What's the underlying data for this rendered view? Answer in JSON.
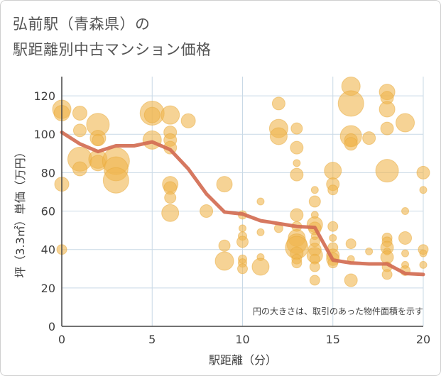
{
  "header": {
    "title_line1": "弘前駅（青森県）の",
    "title_line2": "駅距離別中古マンション価格"
  },
  "colors": {
    "bubble": "#f0b64f",
    "bubble_stroke": "#e8a93a",
    "line": "#d36c52",
    "grid": "#c9d9e6",
    "axis": "#444444"
  },
  "chart_data": {
    "type": "scatter",
    "title": "弘前駅（青森県）の駅距離別中古マンション価格",
    "xlabel": "駅距離（分）",
    "ylabel": "坪（3.3㎡）単価（万円）",
    "xlim": [
      0,
      20
    ],
    "ylim": [
      0,
      130
    ],
    "x_ticks": [
      "0",
      "5",
      "10",
      "15",
      "20"
    ],
    "y_ticks": [
      "0",
      "20",
      "40",
      "60",
      "80",
      "100",
      "120"
    ],
    "grid": true,
    "note": "円の大きさは、取引のあった物件面積を示す",
    "bubbles": [
      {
        "x": 0,
        "y": 113,
        "r": 13
      },
      {
        "x": 0,
        "y": 111,
        "r": 11
      },
      {
        "x": 0,
        "y": 74,
        "r": 10
      },
      {
        "x": 0,
        "y": 40,
        "r": 7
      },
      {
        "x": 1,
        "y": 111,
        "r": 10
      },
      {
        "x": 1,
        "y": 102,
        "r": 9
      },
      {
        "x": 1,
        "y": 87,
        "r": 17
      },
      {
        "x": 1,
        "y": 82,
        "r": 10
      },
      {
        "x": 2,
        "y": 105,
        "r": 16
      },
      {
        "x": 2,
        "y": 98,
        "r": 11
      },
      {
        "x": 2,
        "y": 97,
        "r": 8
      },
      {
        "x": 2,
        "y": 87,
        "r": 13
      },
      {
        "x": 2,
        "y": 85,
        "r": 11
      },
      {
        "x": 3,
        "y": 86,
        "r": 19
      },
      {
        "x": 3,
        "y": 82,
        "r": 17
      },
      {
        "x": 3,
        "y": 76,
        "r": 18
      },
      {
        "x": 5,
        "y": 111,
        "r": 17
      },
      {
        "x": 5,
        "y": 110,
        "r": 11
      },
      {
        "x": 5,
        "y": 97,
        "r": 13
      },
      {
        "x": 6,
        "y": 110,
        "r": 13
      },
      {
        "x": 6,
        "y": 101,
        "r": 9
      },
      {
        "x": 6,
        "y": 97,
        "r": 9
      },
      {
        "x": 6,
        "y": 93,
        "r": 9
      },
      {
        "x": 6,
        "y": 74,
        "r": 11
      },
      {
        "x": 6,
        "y": 72,
        "r": 9
      },
      {
        "x": 6,
        "y": 67,
        "r": 8
      },
      {
        "x": 6,
        "y": 59,
        "r": 12
      },
      {
        "x": 7,
        "y": 107,
        "r": 10
      },
      {
        "x": 8,
        "y": 60,
        "r": 9
      },
      {
        "x": 9,
        "y": 74,
        "r": 11
      },
      {
        "x": 9,
        "y": 42,
        "r": 8
      },
      {
        "x": 9,
        "y": 34,
        "r": 13
      },
      {
        "x": 10,
        "y": 58,
        "r": 6
      },
      {
        "x": 10,
        "y": 51,
        "r": 5
      },
      {
        "x": 10,
        "y": 47,
        "r": 6
      },
      {
        "x": 10,
        "y": 44,
        "r": 8
      },
      {
        "x": 10,
        "y": 35,
        "r": 6
      },
      {
        "x": 10,
        "y": 33,
        "r": 6
      },
      {
        "x": 10,
        "y": 30,
        "r": 7
      },
      {
        "x": 11,
        "y": 65,
        "r": 5
      },
      {
        "x": 11,
        "y": 49,
        "r": 5
      },
      {
        "x": 11,
        "y": 36,
        "r": 5
      },
      {
        "x": 11,
        "y": 31,
        "r": 12
      },
      {
        "x": 12,
        "y": 116,
        "r": 9
      },
      {
        "x": 12,
        "y": 103,
        "r": 13
      },
      {
        "x": 12,
        "y": 99,
        "r": 12
      },
      {
        "x": 12,
        "y": 51,
        "r": 6
      },
      {
        "x": 13,
        "y": 103,
        "r": 8
      },
      {
        "x": 13,
        "y": 93,
        "r": 9
      },
      {
        "x": 13,
        "y": 85,
        "r": 5
      },
      {
        "x": 13,
        "y": 79,
        "r": 9
      },
      {
        "x": 13,
        "y": 58,
        "r": 9
      },
      {
        "x": 13,
        "y": 52,
        "r": 7
      },
      {
        "x": 13,
        "y": 46,
        "r": 12
      },
      {
        "x": 13,
        "y": 43,
        "r": 14
      },
      {
        "x": 13,
        "y": 41,
        "r": 16
      },
      {
        "x": 13,
        "y": 38,
        "r": 9
      },
      {
        "x": 13,
        "y": 35,
        "r": 7
      },
      {
        "x": 13,
        "y": 33,
        "r": 7
      },
      {
        "x": 14,
        "y": 71,
        "r": 5
      },
      {
        "x": 14,
        "y": 65,
        "r": 8
      },
      {
        "x": 14,
        "y": 58,
        "r": 5
      },
      {
        "x": 14,
        "y": 53,
        "r": 11
      },
      {
        "x": 14,
        "y": 51,
        "r": 9
      },
      {
        "x": 14,
        "y": 47,
        "r": 5
      },
      {
        "x": 14,
        "y": 44,
        "r": 7
      },
      {
        "x": 14,
        "y": 40,
        "r": 9
      },
      {
        "x": 14,
        "y": 37,
        "r": 11
      },
      {
        "x": 14,
        "y": 35,
        "r": 7
      },
      {
        "x": 14,
        "y": 31,
        "r": 7
      },
      {
        "x": 14,
        "y": 24,
        "r": 7
      },
      {
        "x": 15,
        "y": 81,
        "r": 12
      },
      {
        "x": 15,
        "y": 74,
        "r": 9
      },
      {
        "x": 15,
        "y": 71,
        "r": 7
      },
      {
        "x": 15,
        "y": 52,
        "r": 7
      },
      {
        "x": 15,
        "y": 46,
        "r": 5
      },
      {
        "x": 15,
        "y": 41,
        "r": 7
      },
      {
        "x": 15,
        "y": 37,
        "r": 9
      },
      {
        "x": 15,
        "y": 35,
        "r": 9
      },
      {
        "x": 15,
        "y": 33,
        "r": 7
      },
      {
        "x": 16,
        "y": 125,
        "r": 13
      },
      {
        "x": 16,
        "y": 116,
        "r": 18
      },
      {
        "x": 16,
        "y": 99,
        "r": 15
      },
      {
        "x": 16,
        "y": 97,
        "r": 9
      },
      {
        "x": 16,
        "y": 95,
        "r": 9
      },
      {
        "x": 16,
        "y": 43,
        "r": 7
      },
      {
        "x": 16,
        "y": 35,
        "r": 5
      },
      {
        "x": 16,
        "y": 24,
        "r": 9
      },
      {
        "x": 17,
        "y": 98,
        "r": 9
      },
      {
        "x": 17,
        "y": 39,
        "r": 5
      },
      {
        "x": 18,
        "y": 122,
        "r": 11
      },
      {
        "x": 18,
        "y": 119,
        "r": 9
      },
      {
        "x": 18,
        "y": 113,
        "r": 11
      },
      {
        "x": 18,
        "y": 103,
        "r": 9
      },
      {
        "x": 18,
        "y": 81,
        "r": 16
      },
      {
        "x": 18,
        "y": 46,
        "r": 7
      },
      {
        "x": 18,
        "y": 44,
        "r": 7
      },
      {
        "x": 18,
        "y": 41,
        "r": 9
      },
      {
        "x": 18,
        "y": 39,
        "r": 5
      },
      {
        "x": 18,
        "y": 36,
        "r": 9
      },
      {
        "x": 18,
        "y": 31,
        "r": 7
      },
      {
        "x": 18,
        "y": 27,
        "r": 7
      },
      {
        "x": 19,
        "y": 106,
        "r": 13
      },
      {
        "x": 19,
        "y": 60,
        "r": 5
      },
      {
        "x": 19,
        "y": 46,
        "r": 9
      },
      {
        "x": 19,
        "y": 38,
        "r": 5
      },
      {
        "x": 19,
        "y": 32,
        "r": 5
      },
      {
        "x": 19,
        "y": 29,
        "r": 7
      },
      {
        "x": 20,
        "y": 80,
        "r": 9
      },
      {
        "x": 20,
        "y": 71,
        "r": 5
      },
      {
        "x": 20,
        "y": 40,
        "r": 7
      },
      {
        "x": 20,
        "y": 38,
        "r": 5
      },
      {
        "x": 20,
        "y": 32,
        "r": 5
      }
    ],
    "trend": {
      "x": [
        0,
        1,
        2,
        3,
        4,
        5,
        6,
        7,
        8,
        9,
        10,
        11,
        12,
        13,
        14,
        15,
        16,
        17,
        18,
        19,
        20
      ],
      "y": [
        101,
        95,
        91,
        94,
        94,
        96,
        92,
        82,
        69,
        59.5,
        58.5,
        55,
        53.5,
        52,
        51.5,
        34.5,
        33,
        32.5,
        32.5,
        27.5,
        27
      ]
    }
  }
}
